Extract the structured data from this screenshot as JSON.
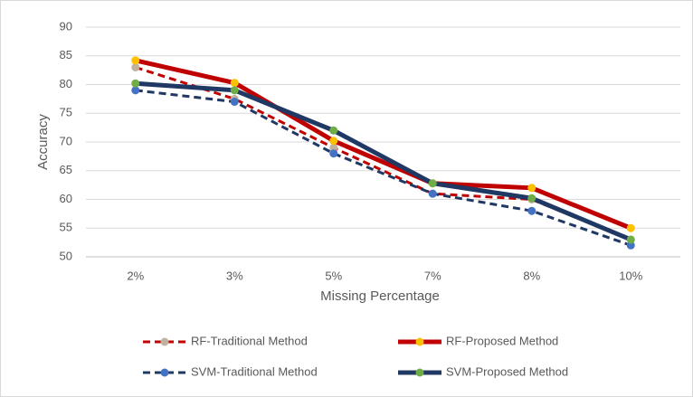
{
  "chart_data": {
    "type": "line",
    "x_label": "Missing Percentage",
    "y_label": "Accuracy",
    "categories": [
      "2%",
      "3%",
      "5%",
      "7%",
      "8%",
      "10%"
    ],
    "series": [
      {
        "name": "RF-Traditional Method",
        "color": "#c00000",
        "marker_color": "#bfb3a0",
        "dashed": true,
        "values": [
          83,
          77.5,
          69,
          61,
          60,
          53
        ]
      },
      {
        "name": "RF-Proposed Method",
        "color": "#c00000",
        "marker_color": "#ffc000",
        "dashed": false,
        "values": [
          84.2,
          80.3,
          70.2,
          62.8,
          62,
          55
        ]
      },
      {
        "name": "SVM-Traditional Method",
        "color": "#1f3864",
        "marker_color": "#4472c4",
        "dashed": true,
        "values": [
          79,
          77,
          68,
          61,
          58,
          52
        ]
      },
      {
        "name": "SVM-Proposed Method",
        "color": "#1f3864",
        "marker_color": "#70ad47",
        "dashed": false,
        "values": [
          80.2,
          79,
          72,
          62.8,
          60.2,
          53
        ]
      }
    ],
    "ylim": [
      50,
      90
    ],
    "yticks": [
      50,
      55,
      60,
      65,
      70,
      75,
      80,
      85,
      90
    ],
    "grid": true,
    "legend": "bottom"
  }
}
